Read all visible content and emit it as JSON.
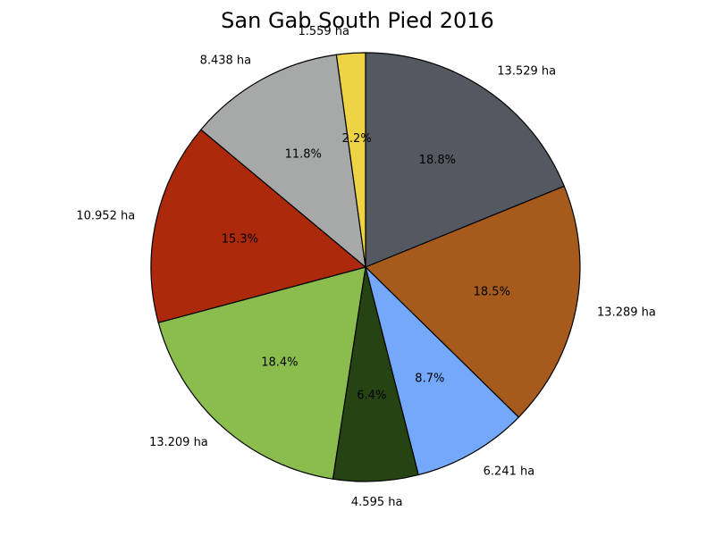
{
  "chart_data": {
    "type": "pie",
    "title": "San Gab South Pied 2016",
    "unit": "ha",
    "slices": [
      {
        "value": 13.529,
        "label": "13.529 ha",
        "pct": "18.8%",
        "color": "#545861"
      },
      {
        "value": 13.289,
        "label": "13.289 ha",
        "pct": "18.5%",
        "color": "#a65b1d"
      },
      {
        "value": 6.241,
        "label": "6.241 ha",
        "pct": "8.7%",
        "color": "#73a8fa"
      },
      {
        "value": 4.595,
        "label": "4.595 ha",
        "pct": "6.4%",
        "color": "#264314"
      },
      {
        "value": 13.209,
        "label": "13.209 ha",
        "pct": "18.4%",
        "color": "#8bbd4e"
      },
      {
        "value": 10.952,
        "label": "10.952 ha",
        "pct": "15.3%",
        "color": "#ac2a0b"
      },
      {
        "value": 8.438,
        "label": "8.438 ha",
        "pct": "11.8%",
        "color": "#a7a9a8"
      },
      {
        "value": 1.559,
        "label": "1.559 ha",
        "pct": "2.2%",
        "color": "#eed444"
      }
    ],
    "start_angle": "top",
    "direction": "clockwise",
    "legend": "none"
  }
}
